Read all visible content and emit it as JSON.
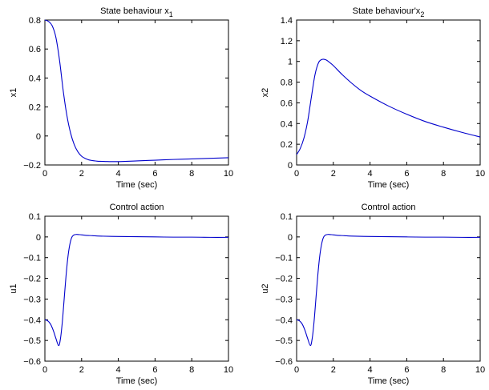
{
  "figure": {
    "line_color": "#0000cc",
    "axes_color": "#000000",
    "background": "#ffffff"
  },
  "chart_data": [
    {
      "type": "line",
      "title": "State behaviour x",
      "title_subscript": "1",
      "xlabel": "Time (sec)",
      "ylabel": "x1",
      "xlim": [
        0,
        10
      ],
      "ylim": [
        -0.2,
        0.8
      ],
      "xticks": [
        0,
        2,
        4,
        6,
        8,
        10
      ],
      "yticks": [
        -0.2,
        0,
        0.2,
        0.4,
        0.6,
        0.8
      ],
      "xtick_labels": [
        "0",
        "2",
        "4",
        "6",
        "8",
        "10"
      ],
      "ytick_labels": [
        "−0.2",
        "0",
        "0.2",
        "0.4",
        "0.6",
        "0.8"
      ],
      "grid": false,
      "series": [
        {
          "x": [
            0,
            0.2,
            0.4,
            0.6,
            0.8,
            1.0,
            1.2,
            1.4,
            1.6,
            1.8,
            2.0,
            2.2,
            2.4,
            2.6,
            2.8,
            3.0,
            3.3,
            3.6,
            3.9,
            4.2,
            5,
            6,
            7,
            8,
            9,
            10
          ],
          "y": [
            0.8,
            0.79,
            0.76,
            0.68,
            0.52,
            0.31,
            0.14,
            0.02,
            -0.06,
            -0.11,
            -0.14,
            -0.155,
            -0.165,
            -0.17,
            -0.173,
            -0.175,
            -0.176,
            -0.177,
            -0.177,
            -0.176,
            -0.172,
            -0.167,
            -0.162,
            -0.158,
            -0.154,
            -0.15
          ]
        }
      ]
    },
    {
      "type": "line",
      "title": "State behaviour'x",
      "title_subscript": "2",
      "xlabel": "Time (sec)",
      "ylabel": "x2",
      "xlim": [
        0,
        10
      ],
      "ylim": [
        0,
        1.4
      ],
      "xticks": [
        0,
        2,
        4,
        6,
        8,
        10
      ],
      "yticks": [
        0,
        0.2,
        0.4,
        0.6,
        0.8,
        1,
        1.2,
        1.4
      ],
      "xtick_labels": [
        "0",
        "2",
        "4",
        "6",
        "8",
        "10"
      ],
      "ytick_labels": [
        "0",
        "0.2",
        "0.4",
        "0.6",
        "0.8",
        "1",
        "1.2",
        "1.4"
      ],
      "grid": false,
      "series": [
        {
          "x": [
            0,
            0.2,
            0.4,
            0.6,
            0.8,
            1.0,
            1.2,
            1.4,
            1.6,
            1.8,
            2.0,
            2.5,
            3,
            3.5,
            4,
            5,
            6,
            7,
            8,
            9,
            10
          ],
          "y": [
            0.1,
            0.16,
            0.26,
            0.42,
            0.65,
            0.87,
            0.99,
            1.02,
            1.015,
            0.99,
            0.96,
            0.87,
            0.79,
            0.72,
            0.665,
            0.57,
            0.49,
            0.42,
            0.365,
            0.315,
            0.27
          ]
        }
      ]
    },
    {
      "type": "line",
      "title": "Control action",
      "xlabel": "Time (sec)",
      "ylabel": "u1",
      "xlim": [
        0,
        10
      ],
      "ylim": [
        -0.6,
        0.1
      ],
      "xticks": [
        0,
        2,
        4,
        6,
        8,
        10
      ],
      "yticks": [
        -0.6,
        -0.5,
        -0.4,
        -0.3,
        -0.2,
        -0.1,
        0,
        0.1
      ],
      "xtick_labels": [
        "0",
        "2",
        "4",
        "6",
        "8",
        "10"
      ],
      "ytick_labels": [
        "−0.6",
        "−0.5",
        "−0.4",
        "−0.3",
        "−0.2",
        "−0.1",
        "0",
        "0.1"
      ],
      "grid": false,
      "series": [
        {
          "x": [
            0,
            0.15,
            0.3,
            0.45,
            0.6,
            0.75,
            0.85,
            0.95,
            1.05,
            1.15,
            1.25,
            1.35,
            1.45,
            1.55,
            1.7,
            1.9,
            2.2,
            2.6,
            3,
            4,
            5,
            6,
            7,
            8,
            9,
            10
          ],
          "y": [
            -0.4,
            -0.405,
            -0.42,
            -0.45,
            -0.49,
            -0.525,
            -0.49,
            -0.41,
            -0.3,
            -0.19,
            -0.1,
            -0.04,
            -0.005,
            0.008,
            0.012,
            0.011,
            0.008,
            0.006,
            0.004,
            0.002,
            0.001,
            0.0,
            -0.001,
            -0.001,
            -0.002,
            -0.002
          ]
        }
      ]
    },
    {
      "type": "line",
      "title": "Control action",
      "xlabel": "Time (sec)",
      "ylabel": "u2",
      "xlim": [
        0,
        10
      ],
      "ylim": [
        -0.6,
        0.1
      ],
      "xticks": [
        0,
        2,
        4,
        6,
        8,
        10
      ],
      "yticks": [
        -0.6,
        -0.5,
        -0.4,
        -0.3,
        -0.2,
        -0.1,
        0,
        0.1
      ],
      "xtick_labels": [
        "0",
        "2",
        "4",
        "6",
        "8",
        "10"
      ],
      "ytick_labels": [
        "−0.6",
        "−0.5",
        "−0.4",
        "−0.3",
        "−0.2",
        "−0.1",
        "0",
        "0.1"
      ],
      "grid": false,
      "series": [
        {
          "x": [
            0,
            0.15,
            0.3,
            0.45,
            0.6,
            0.75,
            0.85,
            0.95,
            1.05,
            1.15,
            1.25,
            1.35,
            1.45,
            1.55,
            1.7,
            1.9,
            2.2,
            2.6,
            3,
            4,
            5,
            6,
            7,
            8,
            9,
            10
          ],
          "y": [
            -0.4,
            -0.405,
            -0.42,
            -0.45,
            -0.49,
            -0.525,
            -0.49,
            -0.41,
            -0.3,
            -0.19,
            -0.1,
            -0.04,
            -0.005,
            0.008,
            0.012,
            0.011,
            0.008,
            0.006,
            0.004,
            0.002,
            0.001,
            0.0,
            -0.001,
            -0.001,
            -0.002,
            -0.002
          ]
        }
      ]
    }
  ]
}
